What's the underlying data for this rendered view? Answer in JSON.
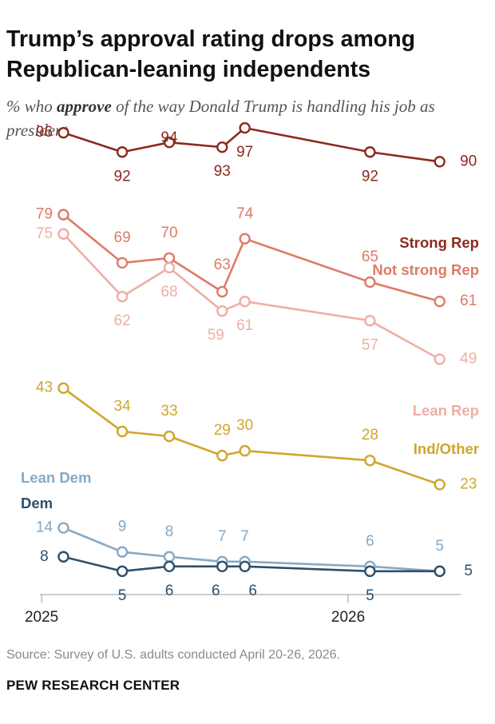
{
  "title_line1": "Trump’s approval rating drops among",
  "title_line2": "Republican-leaning independents",
  "subtitle_pre": "% who ",
  "subtitle_bold": "approve",
  "subtitle_post": " of the way Donald Trump is handling his job as president",
  "source": "Source: Survey of U.S. adults conducted April 20-26, 2026.",
  "brand": "PEW RESEARCH CENTER",
  "chart_data": {
    "type": "line",
    "x": [
      "2025-01-27",
      "2025-04-07",
      "2025-06-02",
      "2025-08-04",
      "2025-08-31",
      "2026-01-27",
      "2026-04-20"
    ],
    "x_tick_labels": [
      {
        "label": "2025",
        "date": "2025-01-01"
      },
      {
        "label": "2026",
        "date": "2026-01-01"
      }
    ],
    "xlim": [
      "2024-12-30",
      "2026-05-15"
    ],
    "ylim": [
      0,
      100
    ],
    "grid": false,
    "series": [
      {
        "name": "Strong Rep",
        "color": "#8c2a1e",
        "values": [
          96,
          92,
          94,
          93,
          97,
          92,
          90
        ]
      },
      {
        "name": "Not strong Rep",
        "color": "#df7a68",
        "values": [
          79,
          69,
          70,
          63,
          74,
          65,
          61
        ]
      },
      {
        "name": "Lean Rep",
        "color": "#efaea4",
        "values": [
          75,
          62,
          68,
          59,
          61,
          57,
          49
        ]
      },
      {
        "name": "Ind/Other",
        "color": "#cfa62c",
        "values": [
          43,
          34,
          33,
          29,
          30,
          28,
          23
        ]
      },
      {
        "name": "Lean Dem",
        "color": "#86a9c5",
        "values": [
          14,
          9,
          8,
          7,
          7,
          6,
          5
        ]
      },
      {
        "name": "Dem",
        "color": "#2e4f6a",
        "values": [
          8,
          5,
          6,
          6,
          6,
          5,
          5
        ]
      }
    ]
  }
}
